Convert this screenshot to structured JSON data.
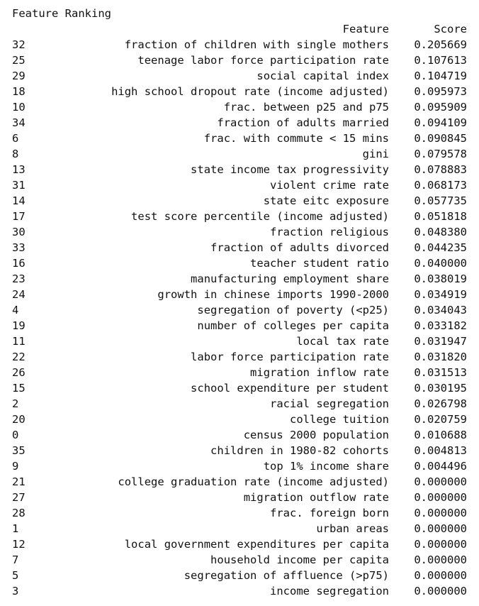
{
  "title": "Feature Ranking",
  "table": {
    "headers": {
      "index": "",
      "feature": "Feature",
      "score": "Score"
    },
    "rows": [
      {
        "index": "32",
        "feature": "fraction of children with single mothers",
        "score": "0.205669"
      },
      {
        "index": "25",
        "feature": "teenage labor force participation rate",
        "score": "0.107613"
      },
      {
        "index": "29",
        "feature": "social capital index",
        "score": "0.104719"
      },
      {
        "index": "18",
        "feature": "high school dropout rate (income adjusted)",
        "score": "0.095973"
      },
      {
        "index": "10",
        "feature": "frac. between p25 and p75",
        "score": "0.095909"
      },
      {
        "index": "34",
        "feature": "fraction of adults married",
        "score": "0.094109"
      },
      {
        "index": "6",
        "feature": "frac. with commute < 15 mins",
        "score": "0.090845"
      },
      {
        "index": "8",
        "feature": "gini",
        "score": "0.079578"
      },
      {
        "index": "13",
        "feature": "state income tax progressivity",
        "score": "0.078883"
      },
      {
        "index": "31",
        "feature": "violent crime rate",
        "score": "0.068173"
      },
      {
        "index": "14",
        "feature": "state eitc exposure",
        "score": "0.057735"
      },
      {
        "index": "17",
        "feature": "test score percentile (income adjusted)",
        "score": "0.051818"
      },
      {
        "index": "30",
        "feature": "fraction religious",
        "score": "0.048380"
      },
      {
        "index": "33",
        "feature": "fraction of adults divorced",
        "score": "0.044235"
      },
      {
        "index": "16",
        "feature": "teacher student ratio",
        "score": "0.040000"
      },
      {
        "index": "23",
        "feature": "manufacturing employment share",
        "score": "0.038019"
      },
      {
        "index": "24",
        "feature": "growth in chinese imports 1990-2000",
        "score": "0.034919"
      },
      {
        "index": "4",
        "feature": "segregation of poverty (<p25)",
        "score": "0.034043"
      },
      {
        "index": "19",
        "feature": "number of colleges per capita",
        "score": "0.033182"
      },
      {
        "index": "11",
        "feature": "local tax rate",
        "score": "0.031947"
      },
      {
        "index": "22",
        "feature": "labor force participation rate",
        "score": "0.031820"
      },
      {
        "index": "26",
        "feature": "migration inflow rate",
        "score": "0.031513"
      },
      {
        "index": "15",
        "feature": "school expenditure per student",
        "score": "0.030195"
      },
      {
        "index": "2",
        "feature": "racial segregation",
        "score": "0.026798"
      },
      {
        "index": "20",
        "feature": "college tuition",
        "score": "0.020759"
      },
      {
        "index": "0",
        "feature": "census 2000 population",
        "score": "0.010688"
      },
      {
        "index": "35",
        "feature": "children in 1980-82 cohorts",
        "score": "0.004813"
      },
      {
        "index": "9",
        "feature": "top 1% income share",
        "score": "0.004496"
      },
      {
        "index": "21",
        "feature": "college graduation rate (income adjusted)",
        "score": "0.000000"
      },
      {
        "index": "27",
        "feature": "migration outflow rate",
        "score": "0.000000"
      },
      {
        "index": "28",
        "feature": "frac. foreign born",
        "score": "0.000000"
      },
      {
        "index": "1",
        "feature": "urban areas",
        "score": "0.000000"
      },
      {
        "index": "12",
        "feature": "local government expenditures per capita",
        "score": "0.000000"
      },
      {
        "index": "7",
        "feature": "household income per capita",
        "score": "0.000000"
      },
      {
        "index": "5",
        "feature": "segregation of affluence (>p75)",
        "score": "0.000000"
      },
      {
        "index": "3",
        "feature": "income segregation",
        "score": "0.000000"
      }
    ]
  }
}
